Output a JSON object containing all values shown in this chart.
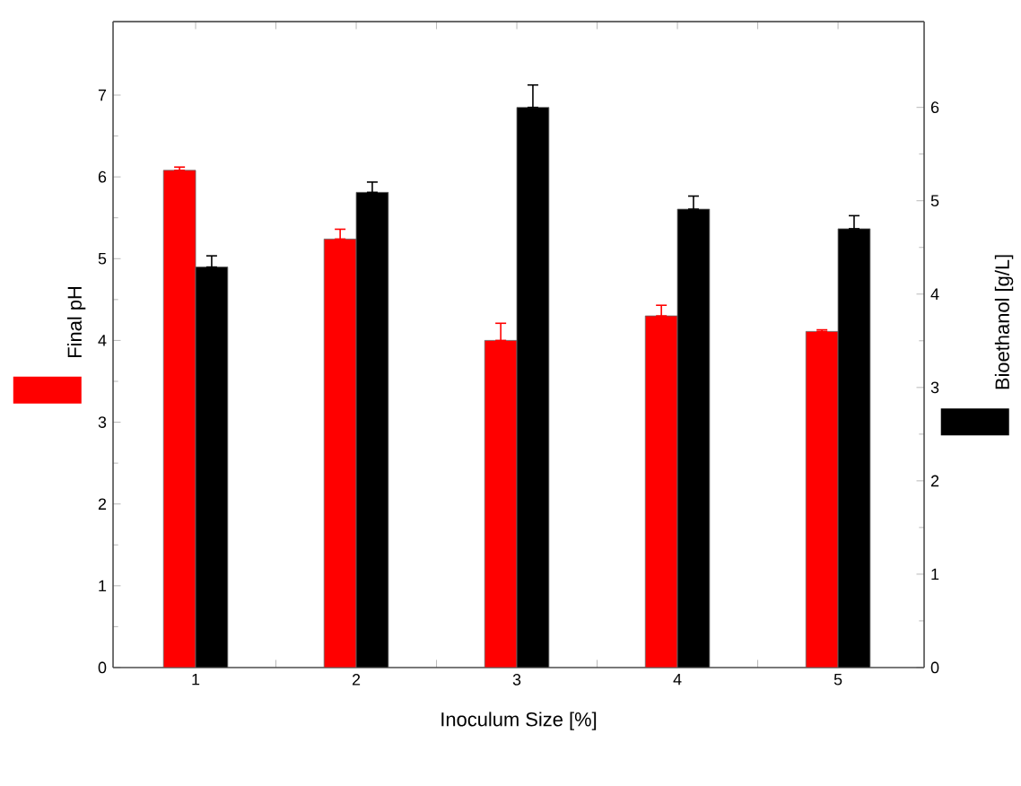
{
  "chart_data": {
    "type": "bar",
    "xlabel": "Inoculum Size [%]",
    "ylabel": "Final pH",
    "y2label": "Bioethanol  [g/L]",
    "categories": [
      "1",
      "2",
      "3",
      "4",
      "5"
    ],
    "series": [
      {
        "color": "#ff0000",
        "values": [
          6.08,
          5.24,
          4.0,
          4.3,
          4.11
        ],
        "errors": [
          [
            6.08,
            6.12
          ],
          [
            5.24,
            5.36
          ],
          [
            4.0,
            4.21
          ],
          [
            4.3,
            4.43
          ],
          [
            4.11,
            4.13
          ]
        ]
      },
      {
        "color": "#000000",
        "axis": "y2",
        "values": [
          4.29,
          5.09,
          6.0,
          4.91,
          4.7
        ],
        "errors": [
          [
            4.29,
            4.41
          ],
          [
            5.09,
            5.2
          ],
          [
            6.0,
            6.24
          ],
          [
            4.91,
            5.05
          ],
          [
            4.7,
            4.84
          ]
        ]
      }
    ],
    "ylim": [
      0,
      7.9
    ],
    "yticks": [
      0,
      1,
      2,
      3,
      4,
      5,
      6,
      7
    ],
    "y2lim": [
      0,
      6.92
    ],
    "y2ticks": [
      0,
      1,
      2,
      3,
      4,
      5,
      6
    ],
    "grid": false
  }
}
